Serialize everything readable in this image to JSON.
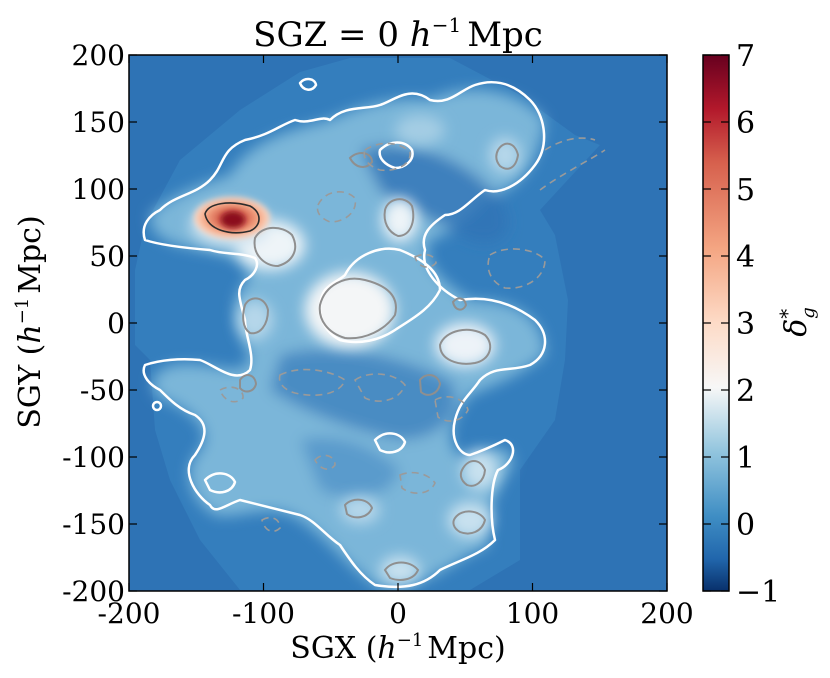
{
  "chart_data": {
    "type": "heatmap",
    "title": "SGZ = 0 h⁻¹ Mpc",
    "title_parts": {
      "prefix": "SGZ = 0 ",
      "var": "h",
      "sup": "−1",
      "unit": "Mpc"
    },
    "xlabel": "SGX (h⁻¹ Mpc)",
    "xlabel_parts": {
      "prefix": "SGX (",
      "var": "h",
      "sup": "−1",
      "unit": "Mpc)"
    },
    "ylabel": "SGY (h⁻¹ Mpc)",
    "ylabel_parts": {
      "prefix": "SGY (",
      "var": "h",
      "sup": "−1",
      "unit": "Mpc)"
    },
    "xlim": [
      -200,
      200
    ],
    "ylim": [
      -200,
      200
    ],
    "xticks": [
      -200,
      -100,
      0,
      100,
      200
    ],
    "xtick_labels": [
      "-200",
      "-100",
      "0",
      "100",
      "200"
    ],
    "yticks": [
      200,
      150,
      100,
      50,
      0,
      -50,
      -100,
      -150,
      -200
    ],
    "ytick_labels": [
      "200",
      "150",
      "100",
      "50",
      "0",
      "-50",
      "-100",
      "-150",
      "-200"
    ],
    "colorbar": {
      "label": "δ*g",
      "label_parts": {
        "base": "δ",
        "sup": "*",
        "sub": "g"
      },
      "range": [
        -1,
        7
      ],
      "ticks": [
        7,
        6,
        5,
        4,
        3,
        2,
        1,
        0,
        -1
      ],
      "tick_labels": [
        "7",
        "6",
        "5",
        "4",
        "3",
        "2",
        "1",
        "0",
        "−1"
      ],
      "colormap": "RdBu_r",
      "colors": [
        "#08306b",
        "#2166ac",
        "#4393c3",
        "#92c5de",
        "#f7f7f7",
        "#fddbc7",
        "#f4a582",
        "#d6604d",
        "#b2182b",
        "#67001f"
      ]
    },
    "survey_outer_radius": 190,
    "background_value": 0,
    "density_peaks": [
      {
        "x": -125,
        "y": 76,
        "value": 7.0
      },
      {
        "x": -98,
        "y": 60,
        "value": 2.8
      },
      {
        "x": -35,
        "y": 15,
        "value": 3.0
      },
      {
        "x": 0,
        "y": 75,
        "value": 2.6
      },
      {
        "x": 50,
        "y": -20,
        "value": 2.5
      },
      {
        "x": 48,
        "y": -150,
        "value": 1.8
      },
      {
        "x": 80,
        "y": -110,
        "value": 1.8
      },
      {
        "x": 0,
        "y": -180,
        "value": 1.6
      },
      {
        "x": -45,
        "y": -140,
        "value": 1.6
      },
      {
        "x": -10,
        "y": -70,
        "value": 1.5
      },
      {
        "x": 25,
        "y": -45,
        "value": 1.7
      },
      {
        "x": 80,
        "y": 120,
        "value": 1.5
      },
      {
        "x": -110,
        "y": 110,
        "value": 1.4
      },
      {
        "x": 30,
        "y": 160,
        "value": 1.3
      },
      {
        "x": -55,
        "y": 100,
        "value": 1.2
      },
      {
        "x": -110,
        "y": -20,
        "value": 1.3
      }
    ],
    "contour_levels": [
      {
        "level": 1,
        "style": "solid",
        "color": "#ffffff"
      },
      {
        "level": 2,
        "style": "solid",
        "color": "#909090"
      },
      {
        "level": 5,
        "style": "solid",
        "color": "#303030"
      },
      {
        "level": -0.5,
        "style": "dashed",
        "color": "#909090"
      }
    ]
  }
}
